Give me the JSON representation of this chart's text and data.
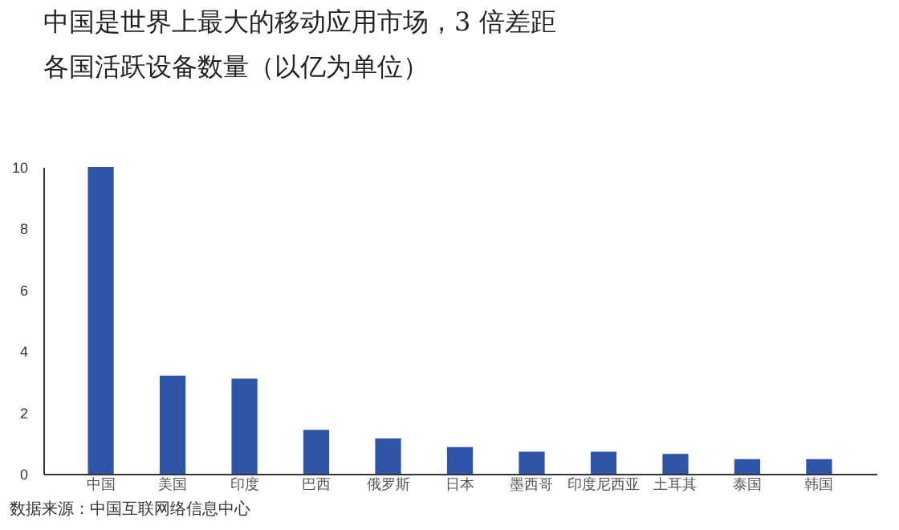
{
  "chart_data": {
    "type": "bar",
    "title": "中国是世界上最大的移动应用市场，3 倍差距",
    "subtitle": "各国活跃设备数量（以亿为单位）",
    "categories": [
      "中国",
      "美国",
      "印度",
      "巴西",
      "俄罗斯",
      "日本",
      "墨西哥",
      "印度尼西亚",
      "土耳其",
      "泰国",
      "韩国"
    ],
    "values": [
      10,
      3.2,
      3.1,
      1.43,
      1.15,
      0.87,
      0.72,
      0.72,
      0.65,
      0.48,
      0.48
    ],
    "color": "#2f54a8",
    "ylim": [
      0,
      10
    ],
    "yticks": [
      0,
      2,
      4,
      6,
      8,
      10
    ],
    "grid": false,
    "legend": false,
    "annotations": [
      "数据来源：中国互联网络信息中心"
    ]
  }
}
